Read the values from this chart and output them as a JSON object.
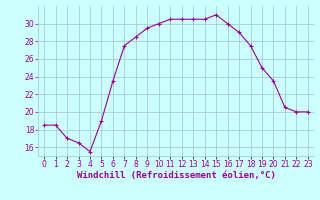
{
  "x": [
    0,
    1,
    2,
    3,
    4,
    5,
    6,
    7,
    8,
    9,
    10,
    11,
    12,
    13,
    14,
    15,
    16,
    17,
    18,
    19,
    20,
    21,
    22,
    23
  ],
  "y": [
    18.5,
    18.5,
    17.0,
    16.5,
    15.5,
    19.0,
    23.5,
    27.5,
    28.5,
    29.5,
    30.0,
    30.5,
    30.5,
    30.5,
    30.5,
    31.0,
    30.0,
    29.0,
    27.5,
    25.0,
    23.5,
    20.5,
    20.0,
    20.0
  ],
  "line_color": "#990099",
  "marker": "+",
  "bg_color": "#ccffff",
  "grid_color": "#aacccc",
  "xlabel": "Windchill (Refroidissement éolien,°C)",
  "xlabel_color": "#990099",
  "ylim": [
    15.0,
    32.0
  ],
  "xlim": [
    -0.5,
    23.5
  ],
  "yticks": [
    16,
    18,
    20,
    22,
    24,
    26,
    28,
    30
  ],
  "xticks": [
    0,
    1,
    2,
    3,
    4,
    5,
    6,
    7,
    8,
    9,
    10,
    11,
    12,
    13,
    14,
    15,
    16,
    17,
    18,
    19,
    20,
    21,
    22,
    23
  ],
  "xtick_labels": [
    "0",
    "1",
    "2",
    "3",
    "4",
    "5",
    "6",
    "7",
    "8",
    "9",
    "10",
    "11",
    "12",
    "13",
    "14",
    "15",
    "16",
    "17",
    "18",
    "19",
    "20",
    "21",
    "22",
    "23"
  ],
  "tick_color": "#990099",
  "tick_fontsize": 5.5,
  "xlabel_fontsize": 6.5,
  "linewidth": 0.8,
  "markersize": 3.5,
  "markeredgewidth": 0.8
}
